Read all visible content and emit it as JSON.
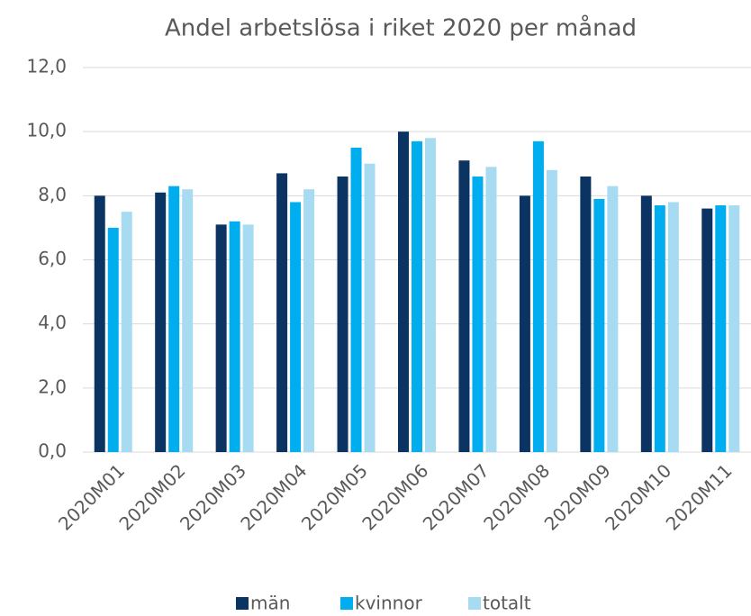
{
  "chart_data": {
    "type": "bar",
    "title": "Andel arbetslösa i riket 2020 per månad",
    "categories": [
      "2020M01",
      "2020M02",
      "2020M03",
      "2020M04",
      "2020M05",
      "2020M06",
      "2020M07",
      "2020M08",
      "2020M09",
      "2020M10",
      "2020M11"
    ],
    "series": [
      {
        "name": "män",
        "color": "#0c3463",
        "values": [
          8.0,
          8.1,
          7.1,
          8.7,
          8.6,
          10.0,
          9.1,
          8.0,
          8.6,
          8.0,
          7.6
        ]
      },
      {
        "name": "kvinnor",
        "color": "#00adee",
        "values": [
          7.0,
          8.3,
          7.2,
          7.8,
          9.5,
          9.7,
          8.6,
          9.7,
          7.9,
          7.7,
          7.7
        ]
      },
      {
        "name": "totalt",
        "color": "#a7dbf1",
        "values": [
          7.5,
          8.2,
          7.1,
          8.2,
          9.0,
          9.8,
          8.9,
          8.8,
          8.3,
          7.8,
          7.7
        ]
      }
    ],
    "ylim": [
      0,
      12
    ],
    "yticks": [
      {
        "value": 0,
        "label": "0,0"
      },
      {
        "value": 2,
        "label": "2,0"
      },
      {
        "value": 4,
        "label": "4,0"
      },
      {
        "value": 6,
        "label": "6,0"
      },
      {
        "value": 8,
        "label": "8,0"
      },
      {
        "value": 10,
        "label": "10,0"
      },
      {
        "value": 12,
        "label": "12,0"
      }
    ],
    "grid": true,
    "legend": "bottom"
  }
}
